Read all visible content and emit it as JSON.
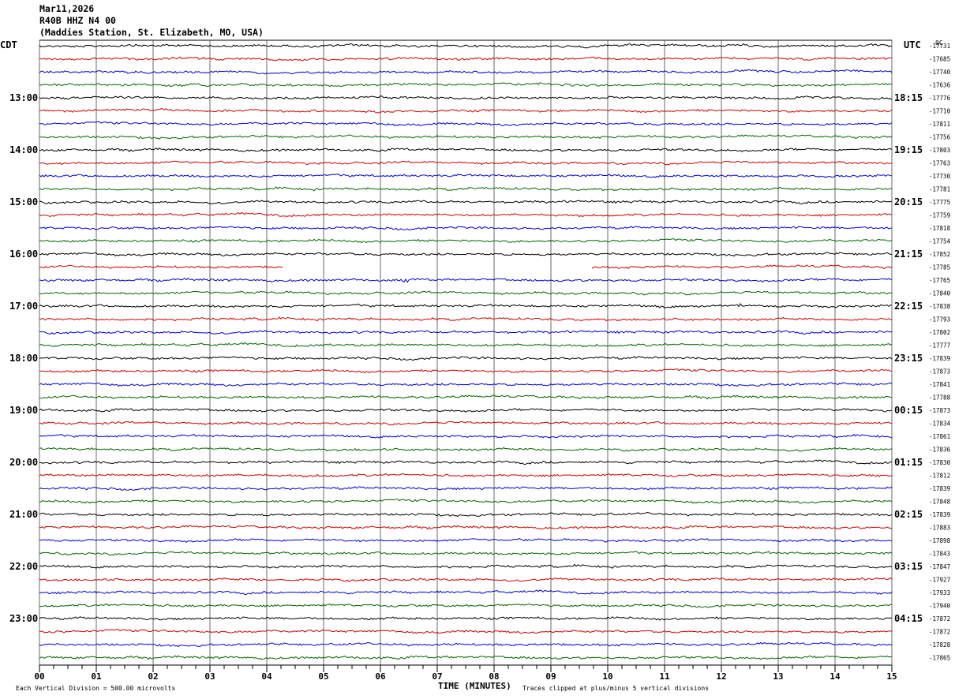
{
  "header": {
    "date": "Mar11,2026",
    "channel": "R40B HHZ N4 00",
    "station": "(Maddies Station, St. Elizabeth, MO, USA)"
  },
  "left_timezone": "CDT",
  "right_timezone": "UTC",
  "right_header_small": "0C",
  "footer": {
    "scale_note": "Each Vertical Division =  500.00 microvolts",
    "xlabel": "TIME (MINUTES)",
    "clip_note": "Traces clipped at plus/minus 5 vertical divisions"
  },
  "colors": {
    "trace_cycle": [
      "#000000",
      "#cc0000",
      "#0000cc",
      "#006600"
    ],
    "grid": "#000000"
  },
  "chart_data": {
    "type": "line",
    "subtype": "helicorder",
    "xlabel": "TIME (MINUTES)",
    "xlim": [
      0,
      15
    ],
    "x_ticks": [
      "00",
      "01",
      "02",
      "03",
      "04",
      "05",
      "06",
      "07",
      "08",
      "09",
      "10",
      "11",
      "12",
      "13",
      "14",
      "15"
    ],
    "minor_ticks_per_minute": 4,
    "left_hour_labels": [
      "13:00",
      "14:00",
      "15:00",
      "16:00",
      "17:00",
      "18:00",
      "19:00",
      "20:00",
      "21:00",
      "22:00",
      "23:00"
    ],
    "right_hour_labels": [
      "18:15",
      "19:15",
      "20:15",
      "21:15",
      "22:15",
      "23:15",
      "00:15",
      "01:15",
      "02:15",
      "03:15",
      "04:15"
    ],
    "first_labeled_row": 4,
    "rows_per_hour": 4,
    "trace_count": 48,
    "trace_offsets": [
      -17731,
      -17685,
      -17740,
      -17636,
      -17776,
      -17710,
      -17811,
      -17756,
      -17803,
      -17763,
      -17730,
      -17781,
      -17775,
      -17759,
      -17818,
      -17754,
      -17852,
      -17785,
      -17765,
      -17840,
      -17838,
      -17793,
      -17802,
      -17777,
      -17839,
      -17873,
      -17841,
      -17788,
      -17873,
      -17834,
      -17861,
      -17836,
      -17830,
      -17812,
      -17839,
      -17848,
      -17839,
      -17883,
      -17898,
      -17843,
      -17847,
      -17927,
      -17933,
      -17940,
      -17872,
      -17872,
      -17828,
      -17865
    ],
    "gap": {
      "row": 17,
      "from_minute": 4.3,
      "to_minute": 9.7
    },
    "annotations": [
      {
        "row": 18,
        "minute": 6.4,
        "note": "small event"
      },
      {
        "row": 20,
        "minute": 11.0,
        "note": "spike"
      },
      {
        "row": 20,
        "minute": 12.3,
        "note": "spike"
      }
    ],
    "grid": true
  }
}
